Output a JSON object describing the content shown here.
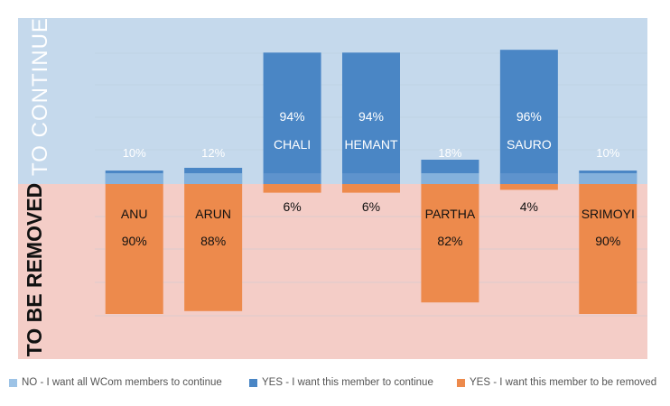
{
  "chart_data": {
    "type": "bar",
    "stacked": true,
    "regions": {
      "top_label": "TO CONTINUE",
      "bottom_label": "TO BE REMOVED",
      "top_color": "#c5d9ec",
      "bottom_color": "#f4cdc7"
    },
    "categories": [
      "ANU",
      "ARUN",
      "CHALI",
      "HEMANT",
      "PARTHA",
      "SAURO",
      "SRIMOYI"
    ],
    "series": [
      {
        "name": "NO - I want all WCom members to continue",
        "color": "#9dc3e6",
        "values": [
          10,
          12,
          0,
          0,
          18,
          0,
          10
        ]
      },
      {
        "name": "YES - I want this member to continue",
        "color": "#4a86c5",
        "values": [
          0,
          0,
          94,
          94,
          0,
          96,
          0
        ]
      },
      {
        "name": "YES - I want this member to be removed",
        "color": "#ed8a4c",
        "values": [
          90,
          88,
          6,
          6,
          82,
          4,
          90
        ]
      }
    ],
    "labels": [
      {
        "name": "ANU",
        "top": "10%",
        "bottom": "90%"
      },
      {
        "name": "ARUN",
        "top": "12%",
        "bottom": "88%"
      },
      {
        "name": "CHALI",
        "top": "94%",
        "bottom": "6%"
      },
      {
        "name": "HEMANT",
        "top": "94%",
        "bottom": "6%"
      },
      {
        "name": "PARTHA",
        "top": "18%",
        "bottom": "82%"
      },
      {
        "name": "SAURO",
        "top": "96%",
        "bottom": "4%"
      },
      {
        "name": "SRIMOYI",
        "top": "10%",
        "bottom": "90%"
      }
    ],
    "legend_position": "bottom",
    "grid": true
  }
}
